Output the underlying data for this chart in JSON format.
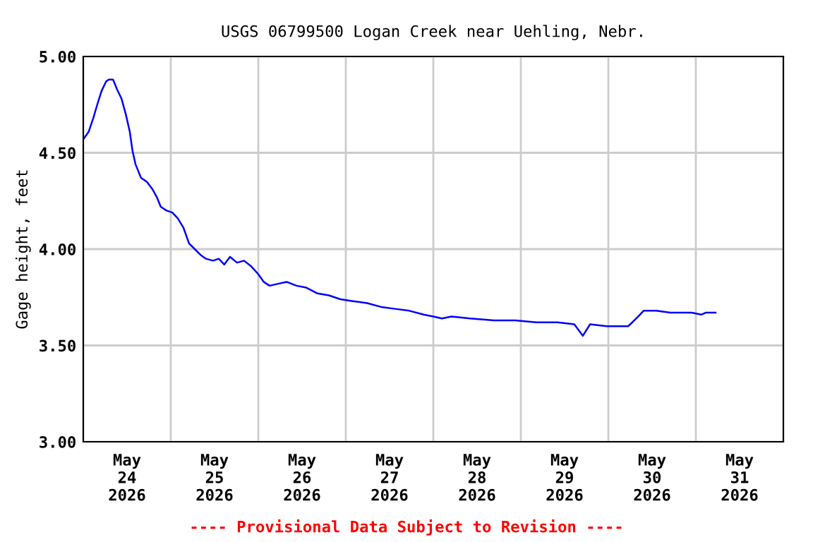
{
  "chart_data": {
    "type": "line",
    "title": "USGS 06799500 Logan Creek near Uehling, Nebr.",
    "ylabel": "Gage height, feet",
    "annotations": [
      "---- Provisional Data Subject to Revision ----"
    ],
    "x": [
      "2026-05-24T00:00",
      "2026-05-24T01:30",
      "2026-05-24T02:45",
      "2026-05-24T03:50",
      "2026-05-24T05:00",
      "2026-05-24T06:15",
      "2026-05-24T07:00",
      "2026-05-24T08:10",
      "2026-05-24T09:15",
      "2026-05-24T10:30",
      "2026-05-24T11:40",
      "2026-05-24T12:45",
      "2026-05-24T13:30",
      "2026-05-24T14:20",
      "2026-05-24T15:50",
      "2026-05-24T17:25",
      "2026-05-24T19:00",
      "2026-05-24T20:10",
      "2026-05-24T21:15",
      "2026-05-24T22:50",
      "2026-05-25T00:25",
      "2026-05-25T01:55",
      "2026-05-25T03:30",
      "2026-05-25T05:00",
      "2026-05-25T06:35",
      "2026-05-25T08:10",
      "2026-05-25T09:40",
      "2026-05-25T11:35",
      "2026-05-25T13:10",
      "2026-05-25T14:40",
      "2026-05-25T16:15",
      "2026-05-25T18:10",
      "2026-05-25T20:05",
      "2026-05-25T22:05",
      "2026-05-26T00:00",
      "2026-05-26T01:30",
      "2026-05-26T03:05",
      "2026-05-26T05:25",
      "2026-05-26T07:45",
      "2026-05-26T10:30",
      "2026-05-26T13:10",
      "2026-05-26T16:15",
      "2026-05-26T19:20",
      "2026-05-26T22:30",
      "2026-05-27T01:55",
      "2026-05-27T05:50",
      "2026-05-27T09:40",
      "2026-05-27T13:30",
      "2026-05-27T17:25",
      "2026-05-27T21:20",
      "2026-05-28T00:00",
      "2026-05-28T02:20",
      "2026-05-28T05:00",
      "2026-05-28T10:05",
      "2026-05-28T16:40",
      "2026-05-28T22:30",
      "2026-05-29T04:15",
      "2026-05-29T10:05",
      "2026-05-29T14:40",
      "2026-05-29T17:00",
      "2026-05-29T19:00",
      "2026-05-29T23:35",
      "2026-05-30T05:25",
      "2026-05-30T06:35",
      "2026-05-30T08:10",
      "2026-05-30T09:40",
      "2026-05-30T13:10",
      "2026-05-30T17:00",
      "2026-05-30T22:50",
      "2026-05-31T01:30",
      "2026-05-31T02:40",
      "2026-05-31T05:25"
    ],
    "series": [
      {
        "color": "#0000ff",
        "values": [
          4.57,
          4.61,
          4.68,
          4.75,
          4.82,
          4.87,
          4.88,
          4.88,
          4.83,
          4.78,
          4.7,
          4.61,
          4.51,
          4.44,
          4.37,
          4.35,
          4.31,
          4.27,
          4.22,
          4.2,
          4.19,
          4.16,
          4.11,
          4.03,
          4.0,
          3.97,
          3.95,
          3.94,
          3.95,
          3.92,
          3.96,
          3.93,
          3.94,
          3.91,
          3.87,
          3.83,
          3.81,
          3.82,
          3.83,
          3.81,
          3.8,
          3.77,
          3.76,
          3.74,
          3.73,
          3.72,
          3.7,
          3.69,
          3.68,
          3.66,
          3.65,
          3.64,
          3.65,
          3.64,
          3.63,
          3.63,
          3.62,
          3.62,
          3.61,
          3.55,
          3.61,
          3.6,
          3.6,
          3.62,
          3.65,
          3.68,
          3.68,
          3.67,
          3.67,
          3.66,
          3.67,
          3.67
        ]
      }
    ],
    "xlim": [
      "2026-05-24T00:00",
      "2026-06-01T00:00"
    ],
    "xticks": [
      {
        "value": "2026-05-24T12:00",
        "label": "May\n24\n2026"
      },
      {
        "value": "2026-05-25T00:00",
        "label": null
      },
      {
        "value": "2026-05-25T12:00",
        "label": "May\n25\n2026"
      },
      {
        "value": "2026-05-26T00:00",
        "label": null
      },
      {
        "value": "2026-05-26T12:00",
        "label": "May\n26\n2026"
      },
      {
        "value": "2026-05-27T00:00",
        "label": null
      },
      {
        "value": "2026-05-27T12:00",
        "label": "May\n27\n2026"
      },
      {
        "value": "2026-05-28T00:00",
        "label": null
      },
      {
        "value": "2026-05-28T12:00",
        "label": "May\n28\n2026"
      },
      {
        "value": "2026-05-29T00:00",
        "label": null
      },
      {
        "value": "2026-05-29T12:00",
        "label": "May\n29\n2026"
      },
      {
        "value": "2026-05-30T00:00",
        "label": null
      },
      {
        "value": "2026-05-30T12:00",
        "label": "May\n30\n2026"
      },
      {
        "value": "2026-05-31T00:00",
        "label": null
      },
      {
        "value": "2026-05-31T12:00",
        "label": "May\n31\n2026"
      }
    ],
    "ylim": [
      3.0,
      5.0
    ],
    "yticks": [
      {
        "value": 3.0,
        "label": "3.00"
      },
      {
        "value": 3.5,
        "label": "3.50"
      },
      {
        "value": 4.0,
        "label": "4.00"
      },
      {
        "value": 4.5,
        "label": "4.50"
      },
      {
        "value": 5.0,
        "label": "5.00"
      }
    ],
    "grid": true,
    "legend": false,
    "marker": "none",
    "line_style": "solid"
  }
}
